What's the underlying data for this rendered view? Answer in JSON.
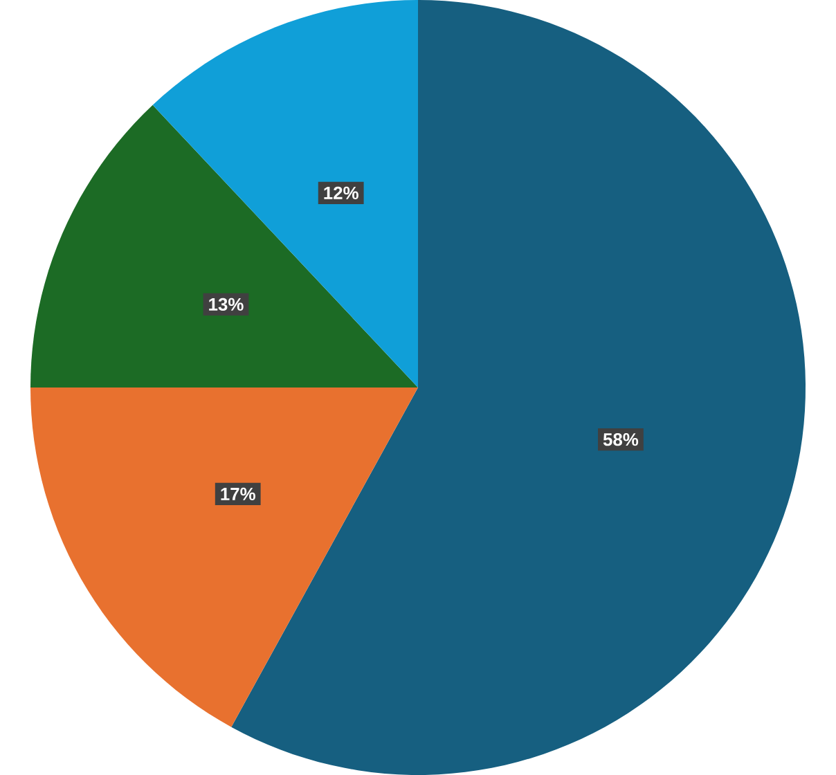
{
  "chart_data": {
    "type": "pie",
    "categories": [
      null,
      null,
      null,
      null
    ],
    "values": [
      58,
      17,
      13,
      12
    ],
    "colors": [
      "#165f80",
      "#e8712f",
      "#1c6b25",
      "#109fd8"
    ],
    "value_labels": [
      "58%",
      "17%",
      "13%",
      "12%"
    ]
  }
}
